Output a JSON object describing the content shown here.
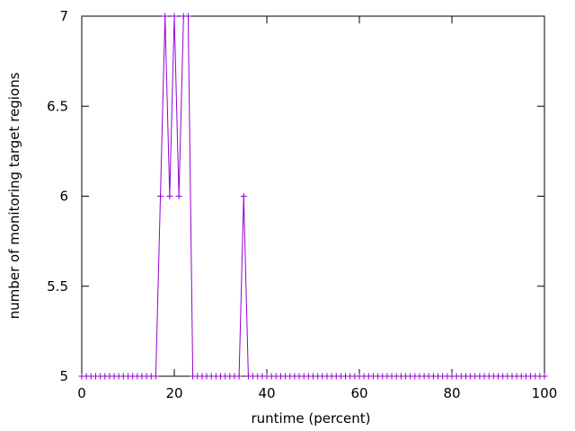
{
  "chart_data": {
    "type": "line",
    "xlabel": "runtime (percent)",
    "ylabel": "number of monitoring target regions",
    "xlim": [
      0,
      100
    ],
    "ylim": [
      5,
      7
    ],
    "xticks": [
      "0",
      "20",
      "40",
      "60",
      "80",
      "100"
    ],
    "yticks": [
      "5",
      "5.5",
      "6",
      "6.5",
      "7"
    ],
    "grid": false,
    "legend": "none",
    "marker": "plus",
    "series": [
      {
        "color": "#9400d3",
        "x": [
          0,
          1,
          2,
          3,
          4,
          5,
          6,
          7,
          8,
          9,
          10,
          11,
          12,
          13,
          14,
          15,
          16,
          17,
          18,
          19,
          20,
          21,
          22,
          23,
          24,
          25,
          26,
          27,
          28,
          29,
          30,
          31,
          32,
          33,
          34,
          35,
          36,
          37,
          38,
          39,
          40,
          41,
          42,
          43,
          44,
          45,
          46,
          47,
          48,
          49,
          50,
          51,
          52,
          53,
          54,
          55,
          56,
          57,
          58,
          59,
          60,
          61,
          62,
          63,
          64,
          65,
          66,
          67,
          68,
          69,
          70,
          71,
          72,
          73,
          74,
          75,
          76,
          77,
          78,
          79,
          80,
          81,
          82,
          83,
          84,
          85,
          86,
          87,
          88,
          89,
          90,
          91,
          92,
          93,
          94,
          95,
          96,
          97,
          98,
          99,
          100
        ],
        "y": [
          5,
          5,
          5,
          5,
          5,
          5,
          5,
          5,
          5,
          5,
          5,
          5,
          5,
          5,
          5,
          5,
          5,
          6,
          7,
          6,
          7,
          6,
          7,
          7,
          5,
          5,
          5,
          5,
          5,
          5,
          5,
          5,
          5,
          5,
          5,
          6,
          5,
          5,
          5,
          5,
          5,
          5,
          5,
          5,
          5,
          5,
          5,
          5,
          5,
          5,
          5,
          5,
          5,
          5,
          5,
          5,
          5,
          5,
          5,
          5,
          5,
          5,
          5,
          5,
          5,
          5,
          5,
          5,
          5,
          5,
          5,
          5,
          5,
          5,
          5,
          5,
          5,
          5,
          5,
          5,
          5,
          5,
          5,
          5,
          5,
          5,
          5,
          5,
          5,
          5,
          5,
          5,
          5,
          5,
          5,
          5,
          5,
          5,
          5,
          5,
          5
        ]
      }
    ]
  }
}
